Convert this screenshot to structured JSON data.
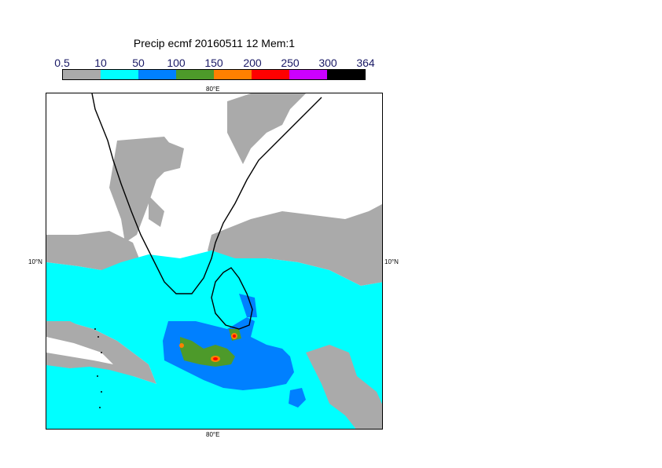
{
  "title": "Precip ecmf 20160511 12 Mem:1",
  "legend": {
    "labels": [
      "0.5",
      "10",
      "50",
      "100",
      "150",
      "200",
      "250",
      "300",
      "364"
    ],
    "colors": [
      "#aaaaaa",
      "#00ffff",
      "#0080ff",
      "#4d9a2a",
      "#ff8000",
      "#ff0000",
      "#cc00ff",
      "#000000"
    ]
  },
  "axes": {
    "top_lon": "80°E",
    "bottom_lon": "80°E",
    "left_lat": "10°N",
    "right_lat": "10°N"
  }
}
